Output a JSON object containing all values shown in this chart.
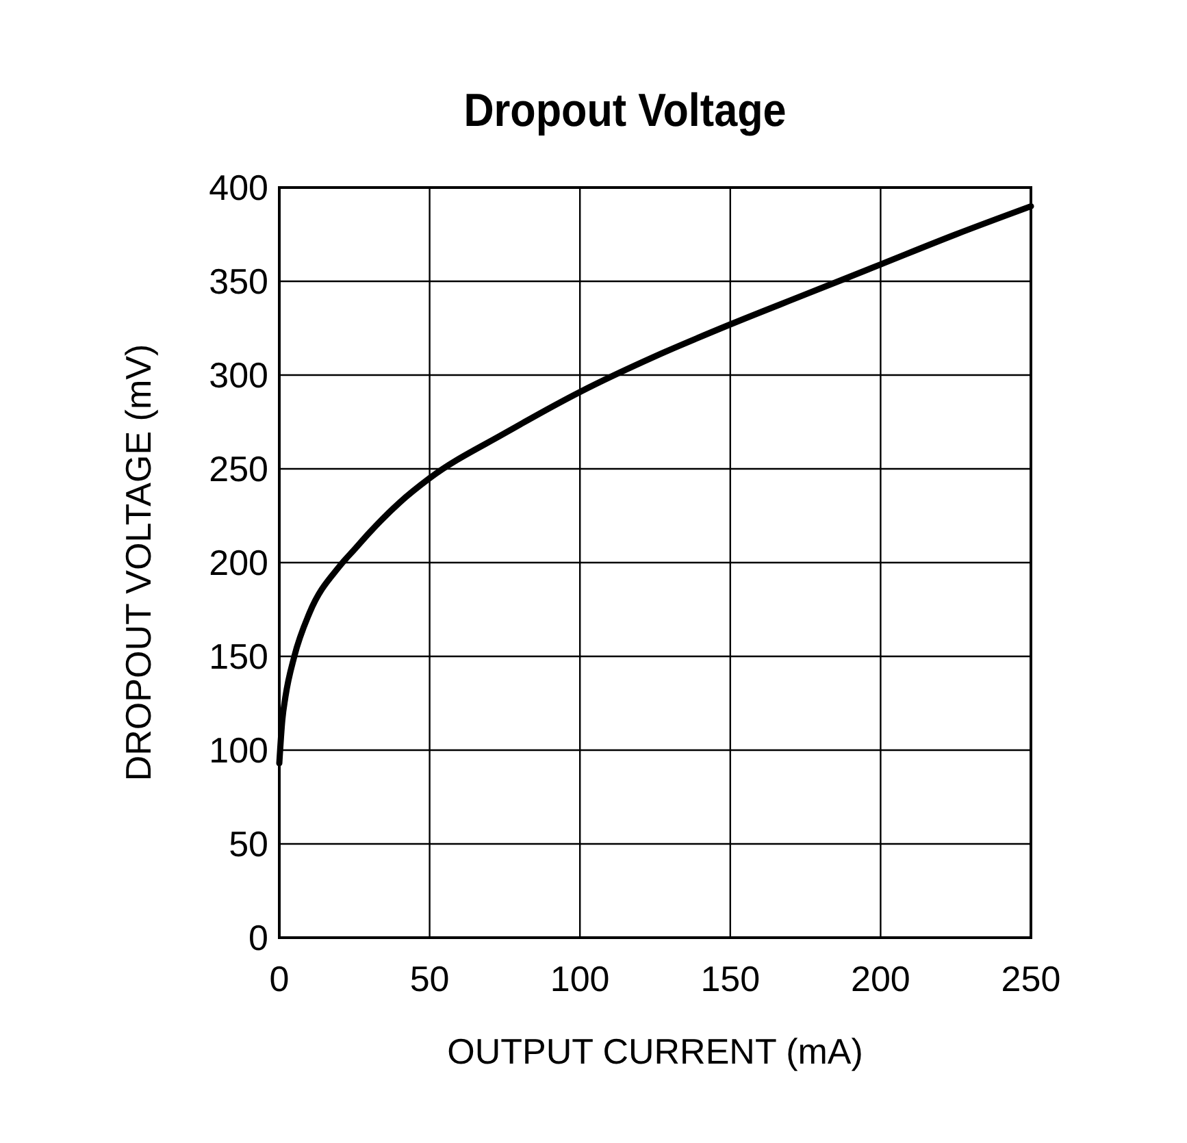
{
  "chart_data": {
    "type": "line",
    "title": "Dropout Voltage",
    "xlabel": "OUTPUT CURRENT (mA)",
    "ylabel": "DROPOUT VOLTAGE (mV)",
    "x": [
      0,
      1,
      2,
      5,
      10,
      20,
      25,
      30,
      40,
      50,
      75,
      100,
      125,
      150,
      175,
      200,
      225,
      250
    ],
    "series": [
      {
        "color": "#000000",
        "values": [
          93,
          116,
          128,
          150,
          173,
          198,
          207,
          216,
          232,
          245,
          269,
          291,
          310,
          327,
          343,
          359,
          375,
          390
        ]
      }
    ],
    "xlim": [
      0,
      250
    ],
    "xticks": [
      0,
      50,
      100,
      150,
      200,
      250
    ],
    "ylim": [
      0,
      400
    ],
    "yticks": [
      0,
      50,
      100,
      150,
      200,
      250,
      300,
      350,
      400
    ],
    "grid": true,
    "marker": "none",
    "line_style": "solid"
  }
}
